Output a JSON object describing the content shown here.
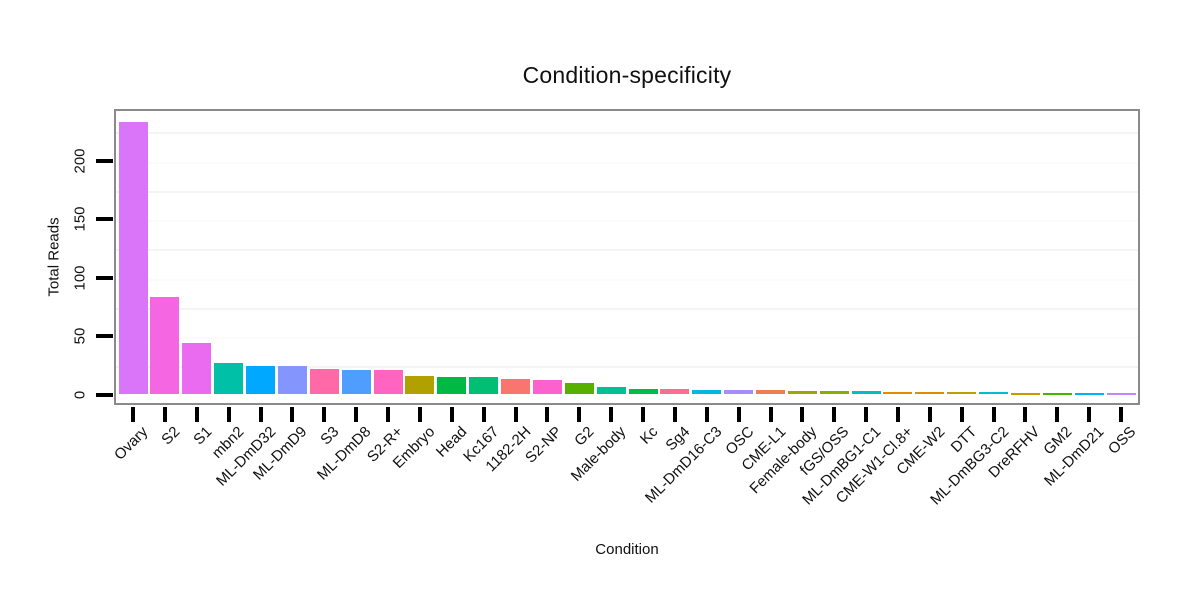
{
  "chart_data": {
    "type": "bar",
    "title": "Condition-specificity",
    "xlabel": "Condition",
    "ylabel": "Total Reads",
    "ylim": [
      0,
      243
    ],
    "grid": "faint-horizontal",
    "legend": "none",
    "y_ticks": [
      0,
      50,
      100,
      150,
      200
    ],
    "categories": [
      "Ovary",
      "S2",
      "S1",
      "mbn2",
      "ML-DmD32",
      "ML-DmD9",
      "S3",
      "ML-DmD8",
      "S2-R+",
      "Embryo",
      "Head",
      "Kc167",
      "1182-2H",
      "S2-NP",
      "G2",
      "Male-body",
      "Kc",
      "Sg4",
      "ML-DmD16-C3",
      "OSC",
      "CME-L1",
      "Female-body",
      "fGS/OSS",
      "ML-DmBG1-C1",
      "CME-W1-Cl.8+",
      "CME-W2",
      "DTT",
      "ML-DmBG3-C2",
      "DreRFHV",
      "GM2",
      "ML-DmD21",
      "OSS"
    ],
    "values": [
      233,
      83,
      44,
      27,
      24,
      24,
      22,
      21,
      21,
      16,
      15,
      15,
      13,
      12,
      10,
      6,
      5,
      5,
      4,
      4,
      4,
      3,
      3,
      3,
      2,
      2,
      2,
      2,
      1,
      1,
      1,
      1
    ],
    "bar_colors": [
      "#DA74F8",
      "#F566E3",
      "#EA6BEF",
      "#00C1A7",
      "#00A8FF",
      "#8496FE",
      "#FF69A8",
      "#4F9EFF",
      "#FF64C0",
      "#B0A100",
      "#00B944",
      "#00BF75",
      "#F8766D",
      "#FC61CD",
      "#57B000",
      "#00C094",
      "#00BB4E",
      "#FF6B91",
      "#00B7E0",
      "#A68CFA",
      "#EC7F51",
      "#9DA700",
      "#8BAD00",
      "#00BFC0",
      "#E28A00",
      "#DB8E00",
      "#C19E00",
      "#00BCD4",
      "#CE9500",
      "#42B500",
      "#00B1F5",
      "#C583FC"
    ],
    "panel_border_color": "#8a8a8a",
    "tick_color": "#000000",
    "text_color": "#101010"
  }
}
